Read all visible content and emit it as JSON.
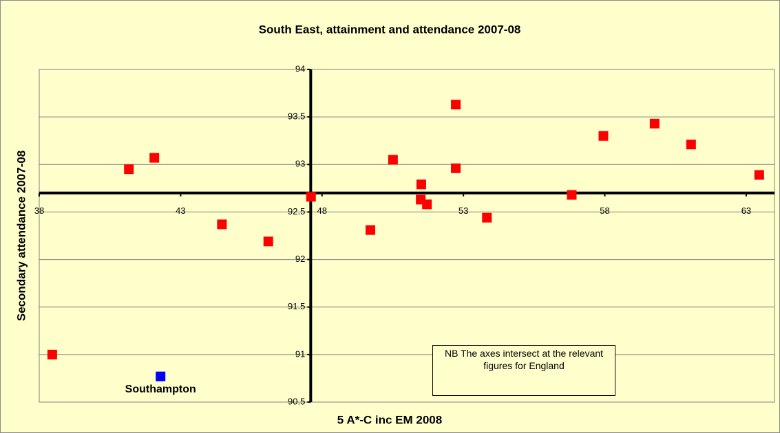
{
  "chart_data": {
    "type": "scatter",
    "title": "South East, attainment and attendance 2007-08",
    "x_label": "5 A*-C inc EM 2008",
    "y_label": "Secondary attendance 2007-08",
    "annotation": "NB  The axes intersect at the relevant figures for England",
    "xlim": [
      38,
      64
    ],
    "ylim": [
      90.5,
      94
    ],
    "xticks": [
      38,
      43,
      48,
      53,
      58,
      63
    ],
    "yticks": [
      90.5,
      91,
      91.5,
      92,
      92.5,
      93,
      93.5,
      94
    ],
    "x_axis_crosses_y": 92.7,
    "y_axis_crosses_x": 47.6,
    "grid": true,
    "series": [
      {
        "color": "#ff0000",
        "x": [
          38.46,
          41.17,
          42.07,
          44.46,
          46.1,
          47.61,
          49.71,
          50.51,
          51.51,
          51.49,
          51.71,
          52.73,
          52.73,
          53.83,
          56.83,
          57.95,
          59.76,
          61.05,
          63.46
        ],
        "values": [
          91.0,
          92.95,
          93.07,
          92.37,
          92.19,
          92.66,
          92.31,
          93.05,
          92.79,
          92.63,
          92.58,
          93.63,
          92.96,
          92.44,
          92.68,
          93.3,
          93.43,
          93.21,
          92.89
        ]
      },
      {
        "name": "Southampton",
        "color": "#0000ff",
        "x": [
          42.29
        ],
        "values": [
          90.77
        ]
      }
    ]
  }
}
